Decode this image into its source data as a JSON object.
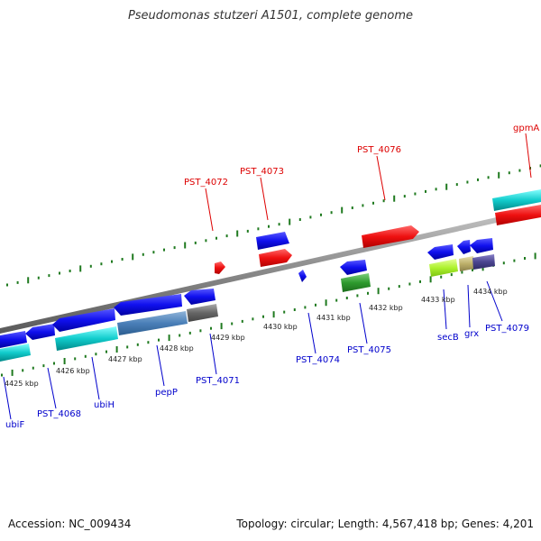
{
  "title": "Pseudomonas stutzeri A1501, complete genome",
  "footer": {
    "accession": "Accession: NC_009434",
    "summary": "Topology: circular; Length: 4,567,418 bp; Genes: 4,201"
  },
  "scale": {
    "ticks": [
      "4425 kbp",
      "4426 kbp",
      "4427 kbp",
      "4428 kbp",
      "4429 kbp",
      "4430 kbp",
      "4431 kbp",
      "4432 kbp",
      "4433 kbp",
      "4434 kbp"
    ]
  },
  "colors": {
    "forward_label": "#dd0000",
    "reverse_label": "#0000cc",
    "backbone": "#8a8a8a",
    "tick": "#1f7a1f"
  },
  "gene_labels": {
    "top": [
      "PST_4072",
      "PST_4073",
      "PST_4076",
      "gpmA"
    ],
    "bottom": [
      "ubiF",
      "PST_4068",
      "ubiH",
      "pepP",
      "PST_4071",
      "PST_4074",
      "PST_4075",
      "secB",
      "grx",
      "PST_4079"
    ]
  }
}
